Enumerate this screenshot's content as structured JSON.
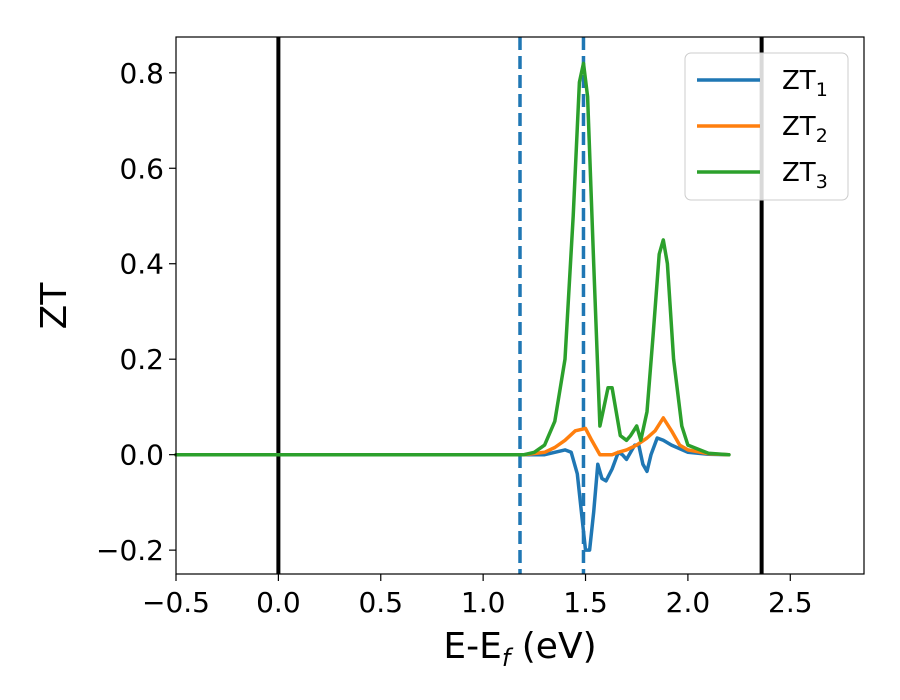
{
  "chart_data": {
    "type": "line",
    "xlabel": "E-E",
    "xlabel_sub": "f",
    "xlabel_unit": " (eV)",
    "ylabel": "ZT",
    "xlim": [
      -0.5,
      2.86
    ],
    "ylim": [
      -0.25,
      0.875
    ],
    "xticks": [
      -0.5,
      0.0,
      0.5,
      1.0,
      1.5,
      2.0,
      2.5
    ],
    "xtick_labels": [
      "−0.5",
      "0.0",
      "0.5",
      "1.0",
      "1.5",
      "2.0",
      "2.5"
    ],
    "yticks": [
      -0.2,
      0.0,
      0.2,
      0.4,
      0.6,
      0.8
    ],
    "ytick_labels": [
      "−0.2",
      "0.0",
      "0.2",
      "0.4",
      "0.6",
      "0.8"
    ],
    "legend_position": "top-right",
    "vlines": [
      {
        "x": 0.0,
        "style": "solid",
        "color": "#000000"
      },
      {
        "x": 2.36,
        "style": "solid",
        "color": "#000000"
      },
      {
        "x": 1.18,
        "style": "dashed",
        "color": "#1f77b4"
      },
      {
        "x": 1.49,
        "style": "dashed",
        "color": "#1f77b4"
      }
    ],
    "series": [
      {
        "name": "ZT",
        "subscript": "1",
        "color": "#1f77b4",
        "points": [
          [
            -0.5,
            0
          ],
          [
            1.0,
            0
          ],
          [
            1.2,
            0
          ],
          [
            1.3,
            0
          ],
          [
            1.35,
            0.005
          ],
          [
            1.4,
            0.01
          ],
          [
            1.43,
            0.005
          ],
          [
            1.46,
            -0.04
          ],
          [
            1.48,
            -0.12
          ],
          [
            1.5,
            -0.2
          ],
          [
            1.52,
            -0.2
          ],
          [
            1.54,
            -0.12
          ],
          [
            1.56,
            -0.02
          ],
          [
            1.58,
            -0.05
          ],
          [
            1.6,
            -0.055
          ],
          [
            1.63,
            -0.03
          ],
          [
            1.66,
            0.005
          ],
          [
            1.68,
            0.0
          ],
          [
            1.7,
            -0.01
          ],
          [
            1.72,
            0.005
          ],
          [
            1.74,
            0.02
          ],
          [
            1.76,
            0.02
          ],
          [
            1.78,
            -0.02
          ],
          [
            1.8,
            -0.035
          ],
          [
            1.82,
            0.0
          ],
          [
            1.85,
            0.035
          ],
          [
            1.88,
            0.03
          ],
          [
            1.92,
            0.02
          ],
          [
            2.0,
            0.005
          ],
          [
            2.1,
            0.001
          ],
          [
            2.2,
            0
          ]
        ]
      },
      {
        "name": "ZT",
        "subscript": "2",
        "color": "#ff7f0e",
        "points": [
          [
            -0.5,
            0
          ],
          [
            1.0,
            0
          ],
          [
            1.2,
            0
          ],
          [
            1.3,
            0.005
          ],
          [
            1.35,
            0.015
          ],
          [
            1.4,
            0.03
          ],
          [
            1.45,
            0.05
          ],
          [
            1.5,
            0.055
          ],
          [
            1.53,
            0.03
          ],
          [
            1.57,
            0.0
          ],
          [
            1.6,
            0.0
          ],
          [
            1.63,
            0.0
          ],
          [
            1.66,
            0.005
          ],
          [
            1.7,
            0.01
          ],
          [
            1.75,
            0.02
          ],
          [
            1.8,
            0.035
          ],
          [
            1.84,
            0.05
          ],
          [
            1.88,
            0.077
          ],
          [
            1.92,
            0.05
          ],
          [
            1.96,
            0.02
          ],
          [
            2.0,
            0.01
          ],
          [
            2.1,
            0.002
          ],
          [
            2.2,
            0
          ]
        ]
      },
      {
        "name": "ZT",
        "subscript": "3",
        "color": "#2ca02c",
        "points": [
          [
            -0.5,
            0
          ],
          [
            1.0,
            0
          ],
          [
            1.2,
            0
          ],
          [
            1.25,
            0.005
          ],
          [
            1.3,
            0.02
          ],
          [
            1.35,
            0.07
          ],
          [
            1.4,
            0.2
          ],
          [
            1.44,
            0.5
          ],
          [
            1.47,
            0.78
          ],
          [
            1.49,
            0.82
          ],
          [
            1.51,
            0.75
          ],
          [
            1.54,
            0.4
          ],
          [
            1.57,
            0.06
          ],
          [
            1.59,
            0.1
          ],
          [
            1.61,
            0.14
          ],
          [
            1.63,
            0.14
          ],
          [
            1.65,
            0.09
          ],
          [
            1.67,
            0.04
          ],
          [
            1.7,
            0.03
          ],
          [
            1.72,
            0.04
          ],
          [
            1.75,
            0.06
          ],
          [
            1.77,
            0.03
          ],
          [
            1.8,
            0.09
          ],
          [
            1.83,
            0.25
          ],
          [
            1.86,
            0.42
          ],
          [
            1.88,
            0.45
          ],
          [
            1.9,
            0.4
          ],
          [
            1.93,
            0.2
          ],
          [
            1.97,
            0.06
          ],
          [
            2.0,
            0.02
          ],
          [
            2.1,
            0.003
          ],
          [
            2.2,
            0
          ]
        ]
      }
    ]
  }
}
